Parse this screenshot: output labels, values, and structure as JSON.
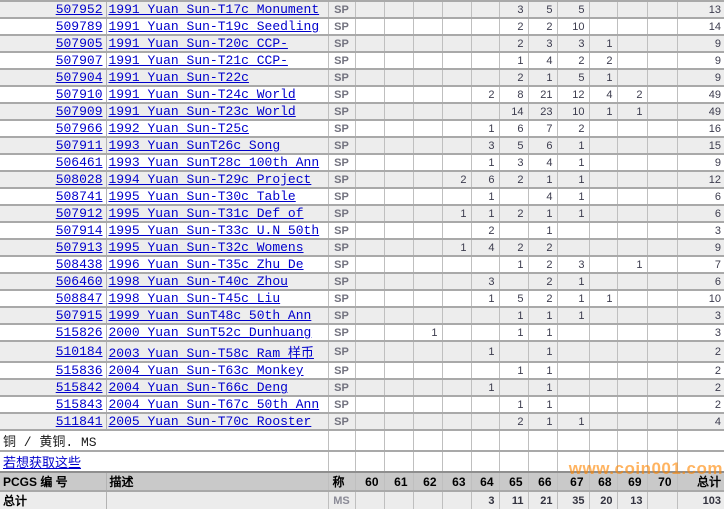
{
  "table": {
    "rows": [
      {
        "pcgs": "507952",
        "desc": "1991 Yuan Sun-T17c Monument",
        "des": "SP",
        "grades": [
          "",
          "",
          "",
          "",
          "",
          "3",
          "5",
          "5",
          "",
          "",
          ""
        ],
        "total": "13"
      },
      {
        "pcgs": "509789",
        "desc": "1991 Yuan Sun-T19c Seedling",
        "des": "SP",
        "grades": [
          "",
          "",
          "",
          "",
          "",
          "2",
          "2",
          "10",
          "",
          "",
          ""
        ],
        "total": "14"
      },
      {
        "pcgs": "507905",
        "desc": "1991 Yuan Sun-T20c CCP-",
        "des": "SP",
        "grades": [
          "",
          "",
          "",
          "",
          "",
          "2",
          "3",
          "3",
          "1",
          "",
          ""
        ],
        "total": "9"
      },
      {
        "pcgs": "507907",
        "desc": "1991 Yuan Sun-T21c CCP-",
        "des": "SP",
        "grades": [
          "",
          "",
          "",
          "",
          "",
          "1",
          "4",
          "2",
          "2",
          "",
          ""
        ],
        "total": "9"
      },
      {
        "pcgs": "507904",
        "desc": "1991 Yuan Sun-T22c",
        "des": "SP",
        "grades": [
          "",
          "",
          "",
          "",
          "",
          "2",
          "1",
          "5",
          "1",
          "",
          ""
        ],
        "total": "9"
      },
      {
        "pcgs": "507910",
        "desc": "1991 Yuan Sun-T24c World",
        "des": "SP",
        "grades": [
          "",
          "",
          "",
          "",
          "2",
          "8",
          "21",
          "12",
          "4",
          "2",
          ""
        ],
        "total": "49"
      },
      {
        "pcgs": "507909",
        "desc": "1991 Yuan Sun-T23c World",
        "des": "SP",
        "grades": [
          "",
          "",
          "",
          "",
          "",
          "14",
          "23",
          "10",
          "1",
          "1",
          ""
        ],
        "total": "49"
      },
      {
        "pcgs": "507966",
        "desc": "1992 Yuan Sun-T25c",
        "des": "SP",
        "grades": [
          "",
          "",
          "",
          "",
          "1",
          "6",
          "7",
          "2",
          "",
          "",
          ""
        ],
        "total": "16"
      },
      {
        "pcgs": "507911",
        "desc": "1993 Yuan SunT26c Song",
        "des": "SP",
        "grades": [
          "",
          "",
          "",
          "",
          "3",
          "5",
          "6",
          "1",
          "",
          "",
          ""
        ],
        "total": "15"
      },
      {
        "pcgs": "506461",
        "desc": "1993 Yuan SunT28c 100th Ann",
        "des": "SP",
        "grades": [
          "",
          "",
          "",
          "",
          "1",
          "3",
          "4",
          "1",
          "",
          "",
          ""
        ],
        "total": "9"
      },
      {
        "pcgs": "508028",
        "desc": "1994 Yuan Sun-T29c Project",
        "des": "SP",
        "grades": [
          "",
          "",
          "",
          "2",
          "6",
          "2",
          "1",
          "1",
          "",
          "",
          ""
        ],
        "total": "12"
      },
      {
        "pcgs": "508741",
        "desc": "1995 Yuan Sun-T30c Table",
        "des": "SP",
        "grades": [
          "",
          "",
          "",
          "",
          "1",
          "",
          "4",
          "1",
          "",
          "",
          ""
        ],
        "total": "6"
      },
      {
        "pcgs": "507912",
        "desc": "1995 Yuan Sun-T31c Def of",
        "des": "SP",
        "grades": [
          "",
          "",
          "",
          "1",
          "1",
          "2",
          "1",
          "1",
          "",
          "",
          ""
        ],
        "total": "6"
      },
      {
        "pcgs": "507914",
        "desc": "1995 Yuan Sun-T33c U.N 50th",
        "des": "SP",
        "grades": [
          "",
          "",
          "",
          "",
          "2",
          "",
          "1",
          "",
          "",
          "",
          ""
        ],
        "total": "3"
      },
      {
        "pcgs": "507913",
        "desc": "1995 Yuan Sun-T32c Womens",
        "des": "SP",
        "grades": [
          "",
          "",
          "",
          "1",
          "4",
          "2",
          "2",
          "",
          "",
          "",
          ""
        ],
        "total": "9"
      },
      {
        "pcgs": "508438",
        "desc": "1996 Yuan Sun-T35c Zhu De",
        "des": "SP",
        "grades": [
          "",
          "",
          "",
          "",
          "",
          "1",
          "2",
          "3",
          "",
          "1",
          ""
        ],
        "total": "7"
      },
      {
        "pcgs": "506460",
        "desc": "1998 Yuan Sun-T40c Zhou",
        "des": "SP",
        "grades": [
          "",
          "",
          "",
          "",
          "3",
          "",
          "2",
          "1",
          "",
          "",
          ""
        ],
        "total": "6"
      },
      {
        "pcgs": "508847",
        "desc": "1998 Yuan Sun-T45c Liu",
        "des": "SP",
        "grades": [
          "",
          "",
          "",
          "",
          "1",
          "5",
          "2",
          "1",
          "1",
          "",
          ""
        ],
        "total": "10"
      },
      {
        "pcgs": "507915",
        "desc": "1999 Yuan SunT48c 50th Ann",
        "des": "SP",
        "grades": [
          "",
          "",
          "",
          "",
          "",
          "1",
          "1",
          "1",
          "",
          "",
          ""
        ],
        "total": "3"
      },
      {
        "pcgs": "515826",
        "desc": "2000 Yuan SunT52c Dunhuang",
        "des": "SP",
        "grades": [
          "",
          "",
          "1",
          "",
          "",
          "1",
          "1",
          "",
          "",
          "",
          ""
        ],
        "total": "3"
      },
      {
        "pcgs": "510184",
        "desc": "2003 Yuan Sun-T58c Ram 样币",
        "des": "SP",
        "grades": [
          "",
          "",
          "",
          "",
          "1",
          "",
          "1",
          "",
          "",
          "",
          ""
        ],
        "total": "2"
      },
      {
        "pcgs": "515836",
        "desc": "2004 Yuan Sun-T63c Monkey",
        "des": "SP",
        "grades": [
          "",
          "",
          "",
          "",
          "",
          "1",
          "1",
          "",
          "",
          "",
          ""
        ],
        "total": "2"
      },
      {
        "pcgs": "515842",
        "desc": "2004 Yuan Sun-T66c Deng",
        "des": "SP",
        "grades": [
          "",
          "",
          "",
          "",
          "1",
          "",
          "1",
          "",
          "",
          "",
          ""
        ],
        "total": "2"
      },
      {
        "pcgs": "515843",
        "desc": "2004 Yuan Sun-T67c 50th Ann",
        "des": "SP",
        "grades": [
          "",
          "",
          "",
          "",
          "",
          "1",
          "1",
          "",
          "",
          "",
          ""
        ],
        "total": "2"
      },
      {
        "pcgs": "511841",
        "desc": "2005 Yuan Sun-T70c Rooster",
        "des": "SP",
        "grades": [
          "",
          "",
          "",
          "",
          "",
          "2",
          "1",
          "1",
          "",
          "",
          ""
        ],
        "total": "4"
      }
    ]
  },
  "footer": {
    "section_note": "铜 / 黄铜. MS",
    "link_text": "若想获取这些",
    "header": {
      "pcgs": "PCGS 编 号",
      "desc": "描述",
      "des": "称",
      "grades": [
        "60",
        "61",
        "62",
        "63",
        "64",
        "65",
        "66",
        "67",
        "68",
        "69",
        "70"
      ],
      "total": "总计"
    },
    "totals": {
      "label": "总计",
      "des": "MS",
      "grades": [
        "",
        "",
        "",
        "",
        "3",
        "11",
        "21",
        "35",
        "20",
        "13",
        ""
      ],
      "total": "103"
    },
    "watermark": "www.coin001.com"
  }
}
